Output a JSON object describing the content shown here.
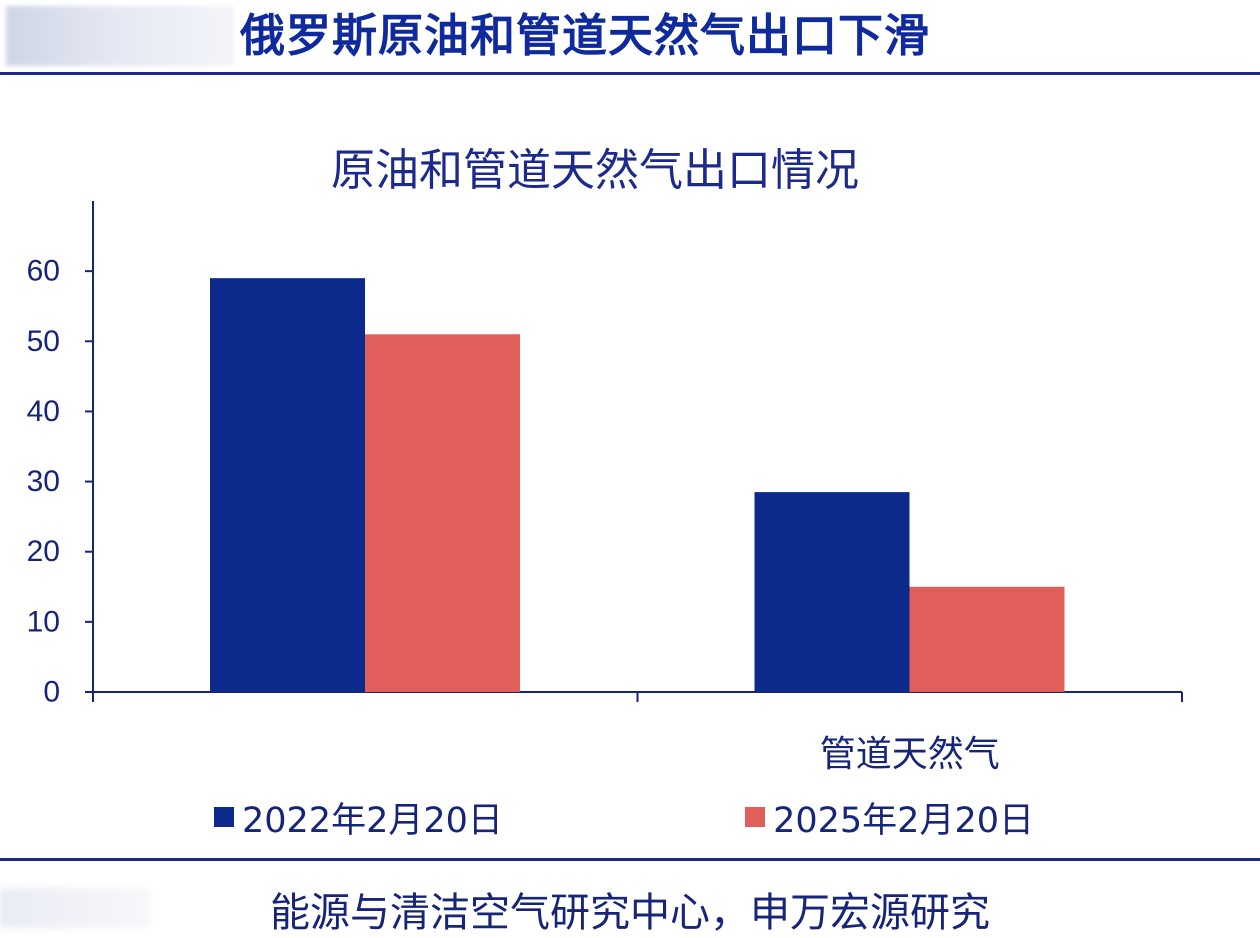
{
  "header": {
    "title": "俄罗斯原油和管道天然气出口下滑"
  },
  "colors": {
    "series_1": "#0c2a8c",
    "series_2": "#e05f5a",
    "axis": "#16247a",
    "rule": "#1b2a8c"
  },
  "chart_data": {
    "type": "bar",
    "title": "原油和管道天然气出口情况",
    "categories": [
      "",
      "管道天然气"
    ],
    "series": [
      {
        "name": "2022年2月20日",
        "values": [
          59,
          28.5
        ]
      },
      {
        "name": "2025年2月20日",
        "values": [
          51,
          15
        ]
      }
    ],
    "ylim": [
      0,
      70
    ],
    "yticks": [
      0,
      10,
      20,
      30,
      40,
      50,
      60
    ],
    "ytick_labels": [
      "0",
      "10",
      "20",
      "30",
      "40",
      "50",
      "60"
    ],
    "xlabel": "",
    "ylabel": "",
    "grid": false,
    "legend_position": "bottom"
  },
  "footer": {
    "source": "能源与清洁空气研究中心，申万宏源研究"
  }
}
